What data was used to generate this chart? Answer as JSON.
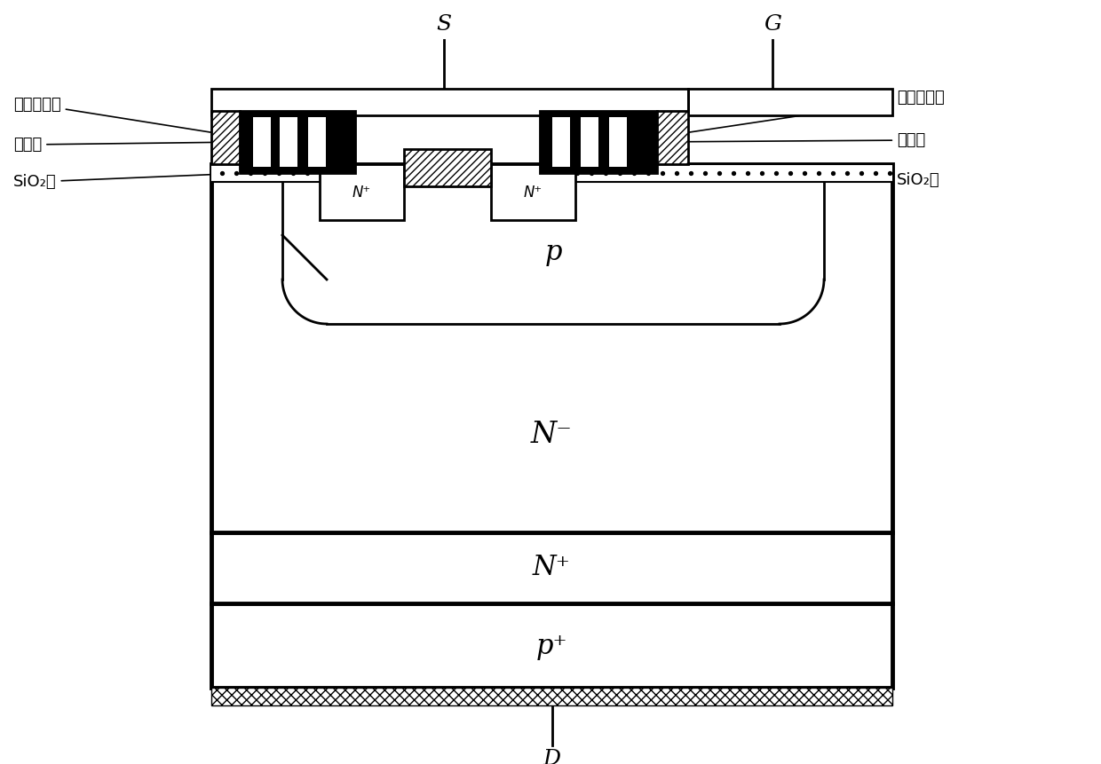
{
  "fig_width": 12.4,
  "fig_height": 8.61,
  "dpi": 100,
  "bg_color": "#ffffff",
  "black": "#000000",
  "label_S": "S",
  "label_G": "G",
  "label_D": "D",
  "label_p": "p",
  "label_Nminus": "N⁻",
  "label_Nplus": "N⁺",
  "label_Pplus": "p⁺",
  "label_N_source": "N⁺",
  "label_metal_dense": "金属致密层",
  "label_light_control": "光控层",
  "label_SiO2": "SiO₂层"
}
